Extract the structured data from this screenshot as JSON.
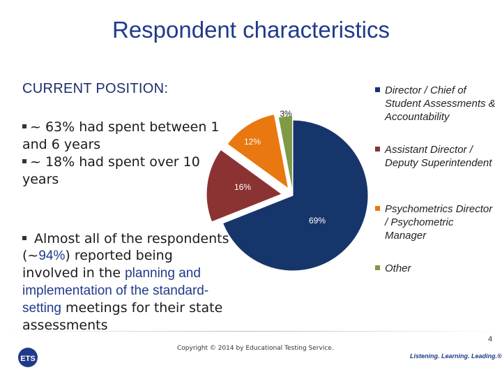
{
  "title": "Respondent characteristics",
  "subtitle": "CURRENT POSITION:",
  "bullets_a": [
    "~ 63% had spent between 1 and 6 years",
    "~ 18% had spent over 10 years"
  ],
  "bullet_b": {
    "part1": "Almost all of the respondents (~",
    "pct": "94%",
    "part2": ") reported being involved in the ",
    "planning": "planning and implementation of the standard-setting",
    "part3": " meetings for their state assessments"
  },
  "chart_data": {
    "type": "pie",
    "categories": [
      "Director / Chief of Student Assessments & Accountability",
      "Assistant Director / Deputy Superintendent",
      "Psychometrics Director / Psychometric Manager",
      "Other"
    ],
    "values": [
      69,
      16,
      12,
      3
    ],
    "labels": [
      "69%",
      "16%",
      "12%",
      "3%"
    ],
    "colors": [
      "#16356b",
      "#8b3232",
      "#e8780f",
      "#7f9a45"
    ],
    "legend_position": "right"
  },
  "footer": {
    "copyright": "Copyright © 2014 by Educational Testing Service.",
    "page_number": "4",
    "tagline": "Listening. Learning. Leading.®",
    "logo_text": "ETS"
  }
}
